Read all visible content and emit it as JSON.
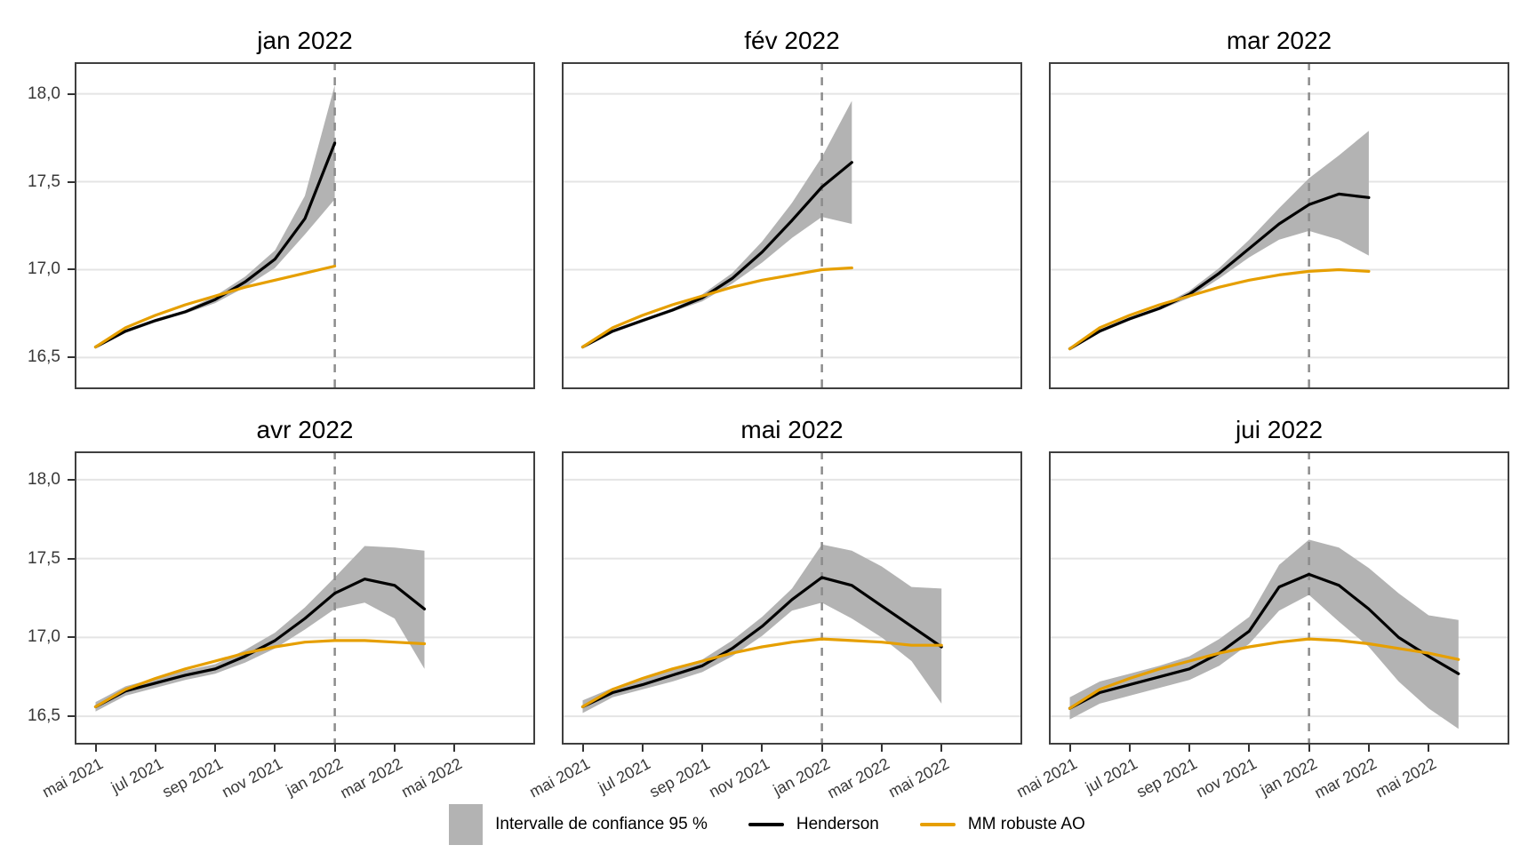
{
  "figure": {
    "colors": {
      "henderson": "#000000",
      "mm_robuste_ao": "#E69F00",
      "confidence_band": "#B3B3B3",
      "dashed_vline": "#8C8C8C",
      "gridline": "#E4E4E4",
      "panel_border": "#3F3F3F",
      "axis_text": "#383838",
      "title_text": "#000000",
      "background": "#FFFFFF"
    },
    "y_axis": {
      "tick_labels": [
        "18,0",
        "17,5",
        "17,0",
        "16,5"
      ],
      "tick_values": [
        18.0,
        17.5,
        17.0,
        16.5
      ]
    },
    "x_axis": {
      "tick_labels": [
        "mai 2021",
        "jul 2021",
        "sep 2021",
        "nov 2021",
        "jan 2022",
        "mar 2022",
        "mai 2022"
      ],
      "tick_month_offsets": [
        0,
        2,
        4,
        6,
        8,
        10,
        12
      ],
      "start_month": "mai 2021"
    },
    "legend": {
      "items": [
        {
          "label": "Intervalle de confiance 95 %",
          "swatch": "band"
        },
        {
          "label": "Henderson",
          "swatch": "line-black"
        },
        {
          "label": "MM robuste AO",
          "swatch": "line-orange"
        }
      ]
    }
  },
  "chart_data": [
    {
      "type": "line",
      "title": "jan 2022",
      "x_start": "mai 2021",
      "x_step_months": 1,
      "vline_month_offset": 8,
      "ylim": [
        16.32,
        18.18
      ],
      "xlim_month_offsets": [
        -0.7,
        14.7
      ],
      "series": [
        {
          "name": "Henderson",
          "color_key": "henderson",
          "values": [
            16.56,
            16.65,
            16.71,
            16.76,
            16.83,
            16.93,
            17.06,
            17.29,
            17.72
          ]
        },
        {
          "name": "MM robuste AO",
          "color_key": "mm_robuste_ao",
          "values": [
            16.56,
            16.67,
            16.74,
            16.8,
            16.85,
            16.9,
            16.94,
            16.98,
            17.02
          ]
        }
      ],
      "confidence_band_95": {
        "lower": [
          16.55,
          16.64,
          16.7,
          16.75,
          16.81,
          16.9,
          17.01,
          17.2,
          17.4
        ],
        "upper": [
          16.57,
          16.66,
          16.72,
          16.77,
          16.85,
          16.96,
          17.11,
          17.42,
          18.05
        ]
      }
    },
    {
      "type": "line",
      "title": "fév 2022",
      "x_start": "mai 2021",
      "x_step_months": 1,
      "vline_month_offset": 8,
      "ylim": [
        16.32,
        18.18
      ],
      "xlim_month_offsets": [
        -0.7,
        14.7
      ],
      "series": [
        {
          "name": "Henderson",
          "color_key": "henderson",
          "values": [
            16.56,
            16.65,
            16.71,
            16.77,
            16.84,
            16.95,
            17.1,
            17.28,
            17.47,
            17.61
          ]
        },
        {
          "name": "MM robuste AO",
          "color_key": "mm_robuste_ao",
          "values": [
            16.56,
            16.67,
            16.74,
            16.8,
            16.85,
            16.9,
            16.94,
            16.97,
            17.0,
            17.01
          ]
        }
      ],
      "confidence_band_95": {
        "lower": [
          16.55,
          16.64,
          16.7,
          16.76,
          16.82,
          16.92,
          17.04,
          17.18,
          17.3,
          17.26
        ],
        "upper": [
          16.57,
          16.66,
          16.72,
          16.78,
          16.86,
          16.98,
          17.16,
          17.38,
          17.64,
          17.96
        ]
      }
    },
    {
      "type": "line",
      "title": "mar 2022",
      "x_start": "mai 2021",
      "x_step_months": 1,
      "vline_month_offset": 8,
      "ylim": [
        16.32,
        18.18
      ],
      "xlim_month_offsets": [
        -0.7,
        14.7
      ],
      "series": [
        {
          "name": "Henderson",
          "color_key": "henderson",
          "values": [
            16.55,
            16.65,
            16.72,
            16.78,
            16.86,
            16.98,
            17.12,
            17.26,
            17.37,
            17.43,
            17.41
          ]
        },
        {
          "name": "MM robuste AO",
          "color_key": "mm_robuste_ao",
          "values": [
            16.55,
            16.67,
            16.74,
            16.8,
            16.85,
            16.9,
            16.94,
            16.97,
            16.99,
            17.0,
            16.99
          ]
        }
      ],
      "confidence_band_95": {
        "lower": [
          16.54,
          16.64,
          16.71,
          16.77,
          16.84,
          16.95,
          17.07,
          17.17,
          17.22,
          17.17,
          17.08
        ],
        "upper": [
          16.56,
          16.66,
          16.73,
          16.79,
          16.88,
          17.01,
          17.17,
          17.35,
          17.52,
          17.65,
          17.79
        ]
      }
    },
    {
      "type": "line",
      "title": "avr 2022",
      "x_start": "mai 2021",
      "x_step_months": 1,
      "vline_month_offset": 8,
      "ylim": [
        16.32,
        18.18
      ],
      "xlim_month_offsets": [
        -0.7,
        14.7
      ],
      "series": [
        {
          "name": "Henderson",
          "color_key": "henderson",
          "values": [
            16.56,
            16.66,
            16.71,
            16.76,
            16.8,
            16.88,
            16.98,
            17.12,
            17.28,
            17.37,
            17.33,
            17.18
          ]
        },
        {
          "name": "MM robuste AO",
          "color_key": "mm_robuste_ao",
          "values": [
            16.56,
            16.67,
            16.74,
            16.8,
            16.85,
            16.9,
            16.94,
            16.97,
            16.98,
            16.98,
            16.97,
            16.96
          ]
        }
      ],
      "confidence_band_95": {
        "lower": [
          16.53,
          16.63,
          16.68,
          16.73,
          16.77,
          16.84,
          16.93,
          17.05,
          17.18,
          17.22,
          17.12,
          16.8
        ],
        "upper": [
          16.59,
          16.69,
          16.74,
          16.79,
          16.83,
          16.92,
          17.03,
          17.19,
          17.38,
          17.58,
          17.57,
          17.55
        ]
      }
    },
    {
      "type": "line",
      "title": "mai 2022",
      "x_start": "mai 2021",
      "x_step_months": 1,
      "vline_month_offset": 8,
      "ylim": [
        16.32,
        18.18
      ],
      "xlim_month_offsets": [
        -0.7,
        14.7
      ],
      "series": [
        {
          "name": "Henderson",
          "color_key": "henderson",
          "values": [
            16.56,
            16.65,
            16.7,
            16.76,
            16.82,
            16.93,
            17.07,
            17.24,
            17.38,
            17.33,
            17.2,
            17.07,
            16.94
          ]
        },
        {
          "name": "MM robuste AO",
          "color_key": "mm_robuste_ao",
          "values": [
            16.56,
            16.67,
            16.74,
            16.8,
            16.85,
            16.9,
            16.94,
            16.97,
            16.99,
            16.98,
            16.97,
            16.95,
            16.95
          ]
        }
      ],
      "confidence_band_95": {
        "lower": [
          16.52,
          16.62,
          16.67,
          16.72,
          16.78,
          16.88,
          17.01,
          17.17,
          17.22,
          17.12,
          17.0,
          16.85,
          16.58
        ],
        "upper": [
          16.6,
          16.68,
          16.73,
          16.8,
          16.86,
          16.98,
          17.13,
          17.31,
          17.59,
          17.55,
          17.45,
          17.32,
          17.31
        ]
      }
    },
    {
      "type": "line",
      "title": "jui 2022",
      "x_start": "mai 2021",
      "x_step_months": 1,
      "vline_month_offset": 8,
      "ylim": [
        16.32,
        18.18
      ],
      "xlim_month_offsets": [
        -0.7,
        14.7
      ],
      "series": [
        {
          "name": "Henderson",
          "color_key": "henderson",
          "values": [
            16.55,
            16.65,
            16.7,
            16.75,
            16.8,
            16.9,
            17.04,
            17.32,
            17.4,
            17.33,
            17.18,
            17.0,
            16.88,
            16.77
          ]
        },
        {
          "name": "MM robuste AO",
          "color_key": "mm_robuste_ao",
          "values": [
            16.55,
            16.67,
            16.74,
            16.8,
            16.85,
            16.9,
            16.94,
            16.97,
            16.99,
            16.98,
            16.96,
            16.93,
            16.9,
            16.86
          ]
        }
      ],
      "confidence_band_95": {
        "lower": [
          16.48,
          16.58,
          16.63,
          16.68,
          16.73,
          16.82,
          16.96,
          17.17,
          17.27,
          17.1,
          16.94,
          16.72,
          16.55,
          16.42
        ],
        "upper": [
          16.62,
          16.72,
          16.77,
          16.82,
          16.88,
          16.99,
          17.13,
          17.46,
          17.62,
          17.57,
          17.44,
          17.28,
          17.14,
          17.11
        ]
      }
    }
  ]
}
